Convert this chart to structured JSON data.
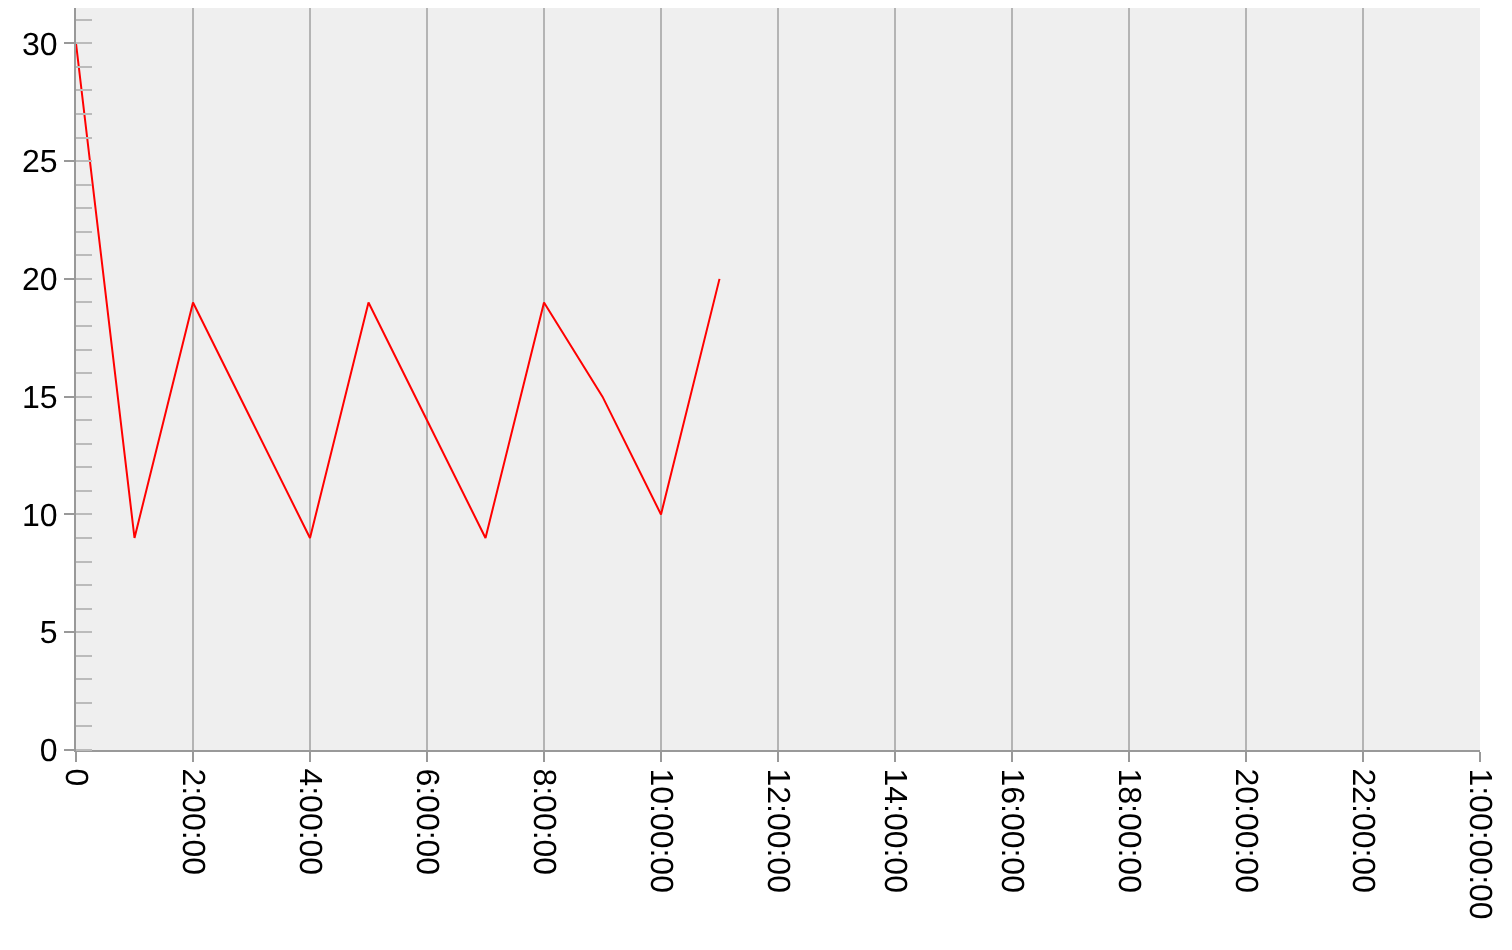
{
  "chart_data": {
    "type": "line",
    "x": [
      0,
      1,
      2,
      3,
      4,
      5,
      6,
      7,
      8,
      9,
      10,
      11
    ],
    "series": [
      {
        "color": "#ff0000",
        "values": [
          30,
          9,
          19,
          14,
          9,
          19,
          14,
          9,
          19,
          15,
          10,
          20
        ]
      }
    ],
    "xlim": [
      0,
      24
    ],
    "xticks": [
      0,
      {
        "value": 2,
        "label": "2:00:00"
      },
      {
        "value": 4,
        "label": "4:00:00"
      },
      {
        "value": 6,
        "label": "6:00:00"
      },
      {
        "value": 8,
        "label": "8:00:00"
      },
      {
        "value": 10,
        "label": "10:00:00"
      },
      {
        "value": 12,
        "label": "12:00:00"
      },
      {
        "value": 14,
        "label": "14:00:00"
      },
      {
        "value": 16,
        "label": "16:00:00"
      },
      {
        "value": 18,
        "label": "18:00:00"
      },
      {
        "value": 20,
        "label": "20:00:00"
      },
      {
        "value": 22,
        "label": "22:00:00"
      },
      {
        "value": 24,
        "label": "1:00:00:00"
      }
    ],
    "ylim": [
      0,
      31.5
    ],
    "yticks": [
      0,
      5,
      10,
      15,
      20,
      25,
      30
    ],
    "grid": "x",
    "legend": false
  }
}
